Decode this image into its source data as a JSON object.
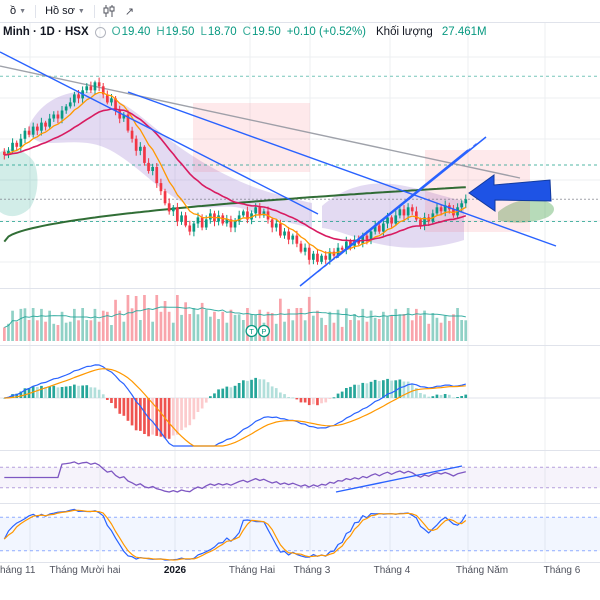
{
  "toolbar": {
    "menu1": "ồ",
    "menu2": "Hồ sơ"
  },
  "legend": {
    "symbol": "Minh · 1D · HSX",
    "o_label": "O",
    "o": "19.40",
    "h_label": "H",
    "h": "19.50",
    "l_label": "L",
    "l": "18.70",
    "c_label": "C",
    "c": "19.50",
    "change": "+0.10 (+0.52%)",
    "volume_label": "Khối lượng",
    "volume_value": "27.461M"
  },
  "volume_markers": [
    {
      "label": "T",
      "bar_index": 60
    },
    {
      "label": "P",
      "bar_index": 63
    }
  ],
  "colors": {
    "up": "#089981",
    "down": "#f23645",
    "volume_up": "rgba(8,153,129,0.45)",
    "volume_down": "rgba(242,54,69,0.45)",
    "accent_blue": "#2962ff",
    "drawing_blue": "#1e53e5",
    "orange_ma": "#ff9800",
    "crimson_ma": "#d81b60",
    "green_ma": "#1b5e20",
    "gray_trend": "#9598a1",
    "purple_cloud": "rgba(126,87,194,0.22)",
    "pink_zone": "rgba(242,54,69,0.11)",
    "green_zone": "rgba(8,153,129,0.18)",
    "future_green": "rgba(67,160,71,0.38)",
    "rsi_purple": "#7e57c2",
    "stoch_k": "#2962ff",
    "stoch_d": "#ff9800",
    "macd_line": "#2962ff",
    "macd_signal": "#ff9800",
    "hist_pos": "#26a69a",
    "hist_pos_weak": "#b2dfdb",
    "hist_neg": "#ef5350",
    "hist_neg_weak": "#fccbcd",
    "vol_ma": "#26a69a",
    "grid": "#eceff2",
    "separator": "#e0e3eb",
    "axis_text": "#50535e",
    "axis_text_strong": "#131722"
  },
  "chart_data": {
    "type": "candlestick",
    "symbol": "Minh · 1D · HSX",
    "interval": "1D",
    "exchange": "HSX",
    "ohlc_display": {
      "o": 19.4,
      "h": 19.5,
      "l": 18.7,
      "c": 19.5,
      "change": 0.1,
      "change_pct": 0.52
    },
    "volume_display": "27.461M",
    "price_range": [
      17.3,
      23.2
    ],
    "closes": [
      20.6,
      20.7,
      20.9,
      20.8,
      21.0,
      21.2,
      21.1,
      21.3,
      21.2,
      21.4,
      21.3,
      21.5,
      21.6,
      21.5,
      21.7,
      21.8,
      21.9,
      22.1,
      22.0,
      22.2,
      22.3,
      22.2,
      22.4,
      22.3,
      22.1,
      21.9,
      22.0,
      21.7,
      21.5,
      21.6,
      21.2,
      21.0,
      20.7,
      20.8,
      20.4,
      20.2,
      20.3,
      19.9,
      19.7,
      19.4,
      19.2,
      19.3,
      18.95,
      19.1,
      18.85,
      18.7,
      18.9,
      19.05,
      18.8,
      19.0,
      19.15,
      18.95,
      19.1,
      18.9,
      19.0,
      18.8,
      18.95,
      19.1,
      19.2,
      19.0,
      19.15,
      19.3,
      19.1,
      19.2,
      19.0,
      18.8,
      18.9,
      18.6,
      18.7,
      18.5,
      18.6,
      18.4,
      18.2,
      18.3,
      18.0,
      18.15,
      17.95,
      18.1,
      18.0,
      18.2,
      18.1,
      18.3,
      18.25,
      18.45,
      18.35,
      18.5,
      18.4,
      18.6,
      18.5,
      18.7,
      18.85,
      18.7,
      18.9,
      19.05,
      18.9,
      19.1,
      19.25,
      19.1,
      19.3,
      19.2,
      19.0,
      18.85,
      19.05,
      18.95,
      19.15,
      19.3,
      19.2,
      19.35,
      19.25,
      19.1,
      19.3,
      19.4,
      19.5
    ],
    "x_axis_labels": [
      "háng 11",
      "Tháng Mười hai",
      "2026",
      "Tháng Hai",
      "Tháng 3",
      "Tháng 4",
      "Tháng Năm",
      "Tháng 6"
    ],
    "panes": [
      "price",
      "volume",
      "macd",
      "rsi",
      "stochastic"
    ],
    "overlays": [
      "ichimoku-cloud",
      "sma-200",
      "ema-fast",
      "ema-slow",
      "gray-trendline",
      "blue-trendlines",
      "parallel-channel",
      "supply-zones",
      "left-arrow-annotation"
    ],
    "price_levels_dashed": [
      22.55,
      20.35,
      18.95,
      19.5
    ],
    "bands": {
      "rsi": [
        70,
        30
      ],
      "stoch": [
        80,
        20
      ]
    }
  }
}
